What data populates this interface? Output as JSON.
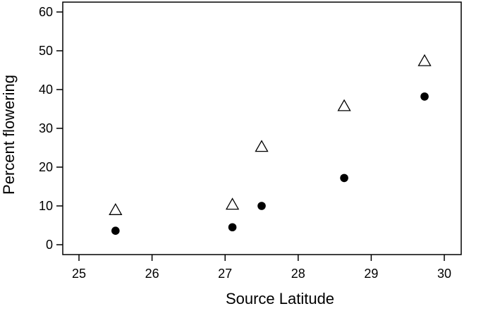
{
  "chart_data": {
    "type": "scatter",
    "title": "",
    "xlabel": "Source Latitude",
    "ylabel": "Percent flowering",
    "xlim": [
      25,
      30
    ],
    "ylim": [
      0,
      60
    ],
    "xticks": [
      25,
      26,
      27,
      28,
      29,
      30
    ],
    "yticks": [
      0,
      10,
      20,
      30,
      40,
      50,
      60
    ],
    "grid": false,
    "legend": "none",
    "series": [
      {
        "marker": "open-triangle",
        "color": "#000000",
        "x": [
          25.5,
          27.1,
          27.5,
          28.63,
          29.73
        ],
        "y": [
          8.8,
          10.2,
          25.1,
          35.6,
          47.2
        ]
      },
      {
        "marker": "filled-circle",
        "color": "#000000",
        "x": [
          25.5,
          27.1,
          27.5,
          28.63,
          29.73
        ],
        "y": [
          3.6,
          4.5,
          10.0,
          17.2,
          38.2
        ]
      }
    ]
  }
}
